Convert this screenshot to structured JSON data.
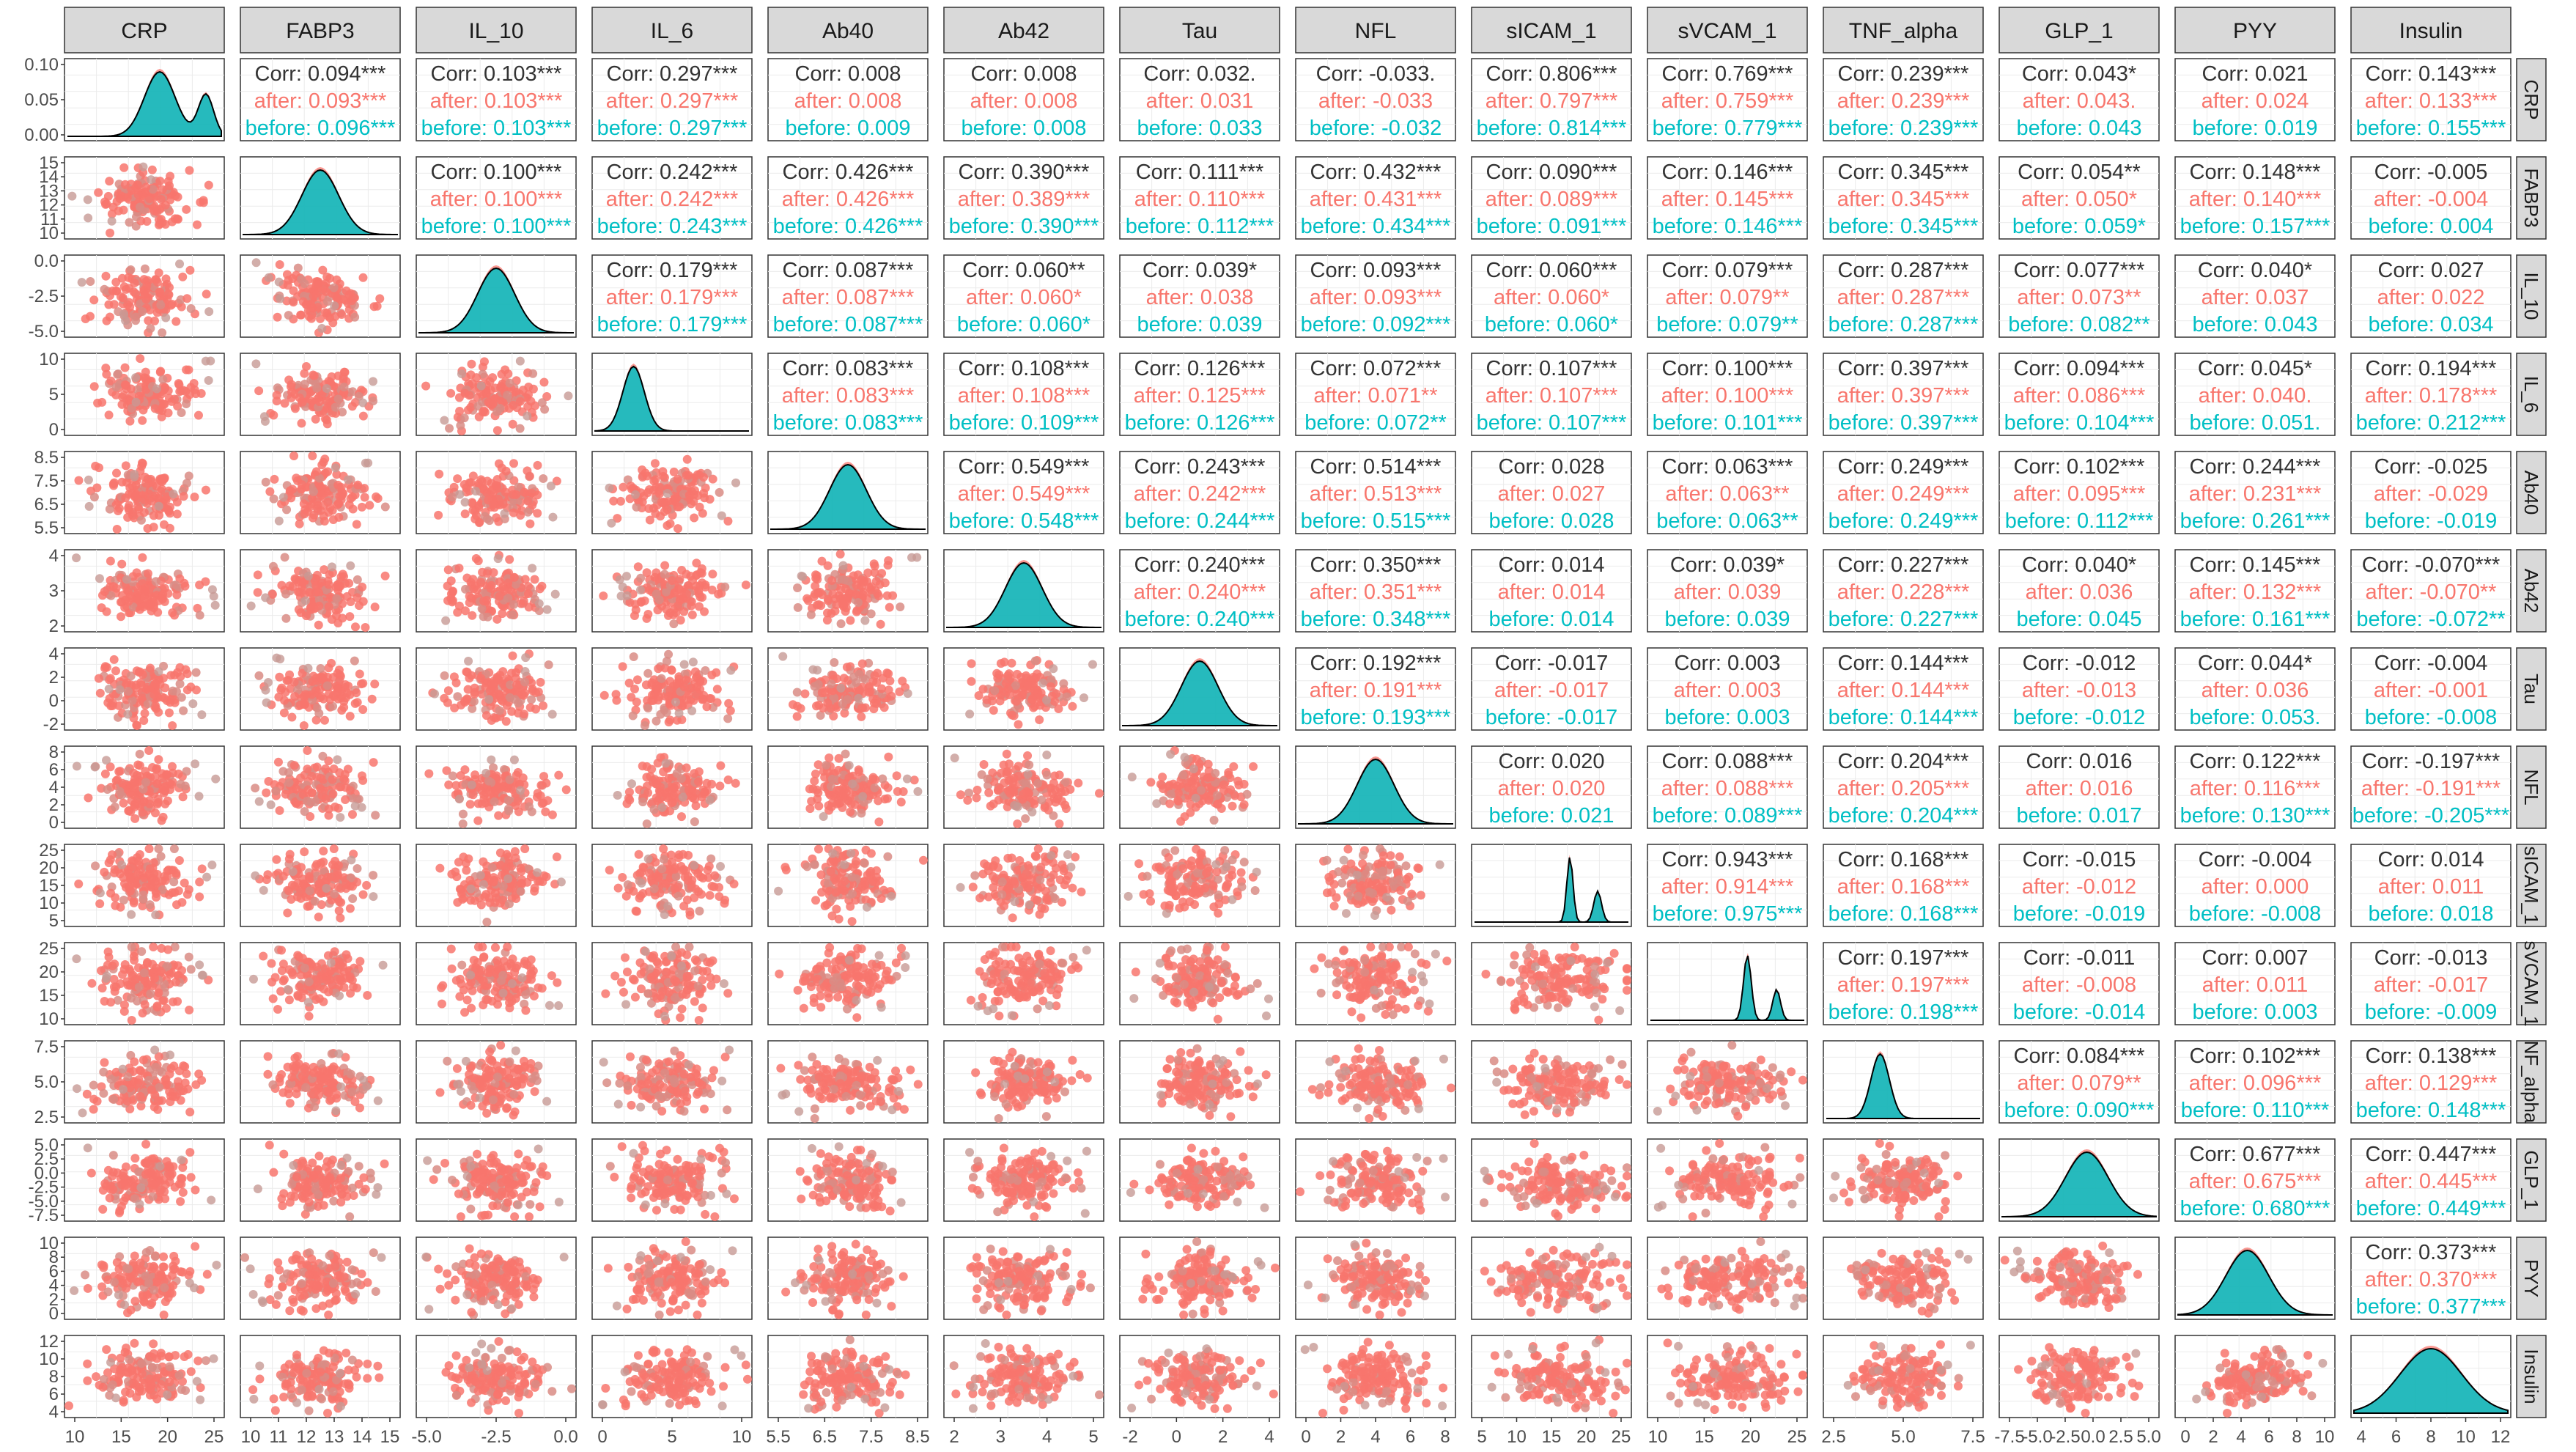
{
  "chart_data": {
    "type": "scatter-matrix",
    "title": "",
    "variables": [
      "CRP",
      "FABP3",
      "IL_10",
      "IL_6",
      "Ab40",
      "Ab42",
      "Tau",
      "NFL",
      "sICAM_1",
      "sVCAM_1",
      "TNF_alpha",
      "GLP_1",
      "PYY",
      "Insulin"
    ],
    "row_labels_shown": [
      "CRP",
      "FABP3",
      "IL_10",
      "IL_6",
      "Ab40",
      "Ab42",
      "Tau",
      "NFL",
      "sICAM_1",
      "sVCAM_1",
      "NF_alpha",
      "GLP_1",
      "PYY",
      "Insulin"
    ],
    "groups": [
      {
        "name": "Corr",
        "color": "#333333"
      },
      {
        "name": "after",
        "color": "#F8766D"
      },
      {
        "name": "before",
        "color": "#00BFC4"
      }
    ],
    "x_ticks": [
      [
        "10",
        "15",
        "20",
        "25"
      ],
      [
        "10",
        "11",
        "12",
        "13",
        "14",
        "15"
      ],
      [
        "-5.0",
        "-2.5",
        "0.0"
      ],
      [
        "0",
        "5",
        "10"
      ],
      [
        "5.5",
        "6.5",
        "7.5",
        "8.5"
      ],
      [
        "2",
        "3",
        "4",
        "5"
      ],
      [
        "-2",
        "0",
        "2",
        "4"
      ],
      [
        "0",
        "2",
        "4",
        "6",
        "8"
      ],
      [
        "5",
        "10",
        "15",
        "20",
        "25"
      ],
      [
        "10",
        "15",
        "20",
        "25"
      ],
      [
        "2.5",
        "5.0",
        "7.5"
      ],
      [
        "-7.5",
        "-5.0",
        "-2.5",
        "0.0",
        "2.5",
        "5.0"
      ],
      [
        "0",
        "2",
        "4",
        "6",
        "8",
        "10"
      ],
      [
        "4",
        "6",
        "8",
        "10",
        "12"
      ]
    ],
    "y_ticks": [
      [
        "0.10",
        "0.05",
        "0.00"
      ],
      [
        "15",
        "14",
        "13",
        "12",
        "11",
        "10"
      ],
      [
        "0.0",
        "-2.5",
        "-5.0"
      ],
      [
        "10",
        "5",
        "0"
      ],
      [
        "8.5",
        "7.5",
        "6.5",
        "5.5"
      ],
      [
        "4",
        "3",
        "2"
      ],
      [
        "4",
        "2",
        "0",
        "-2"
      ],
      [
        "8",
        "6",
        "4",
        "2",
        "0"
      ],
      [
        "25",
        "20",
        "15",
        "10",
        "5"
      ],
      [
        "25",
        "20",
        "15",
        "10"
      ],
      [
        "7.5",
        "5.0",
        "2.5"
      ],
      [
        "5.0",
        "2.5",
        "0.0",
        "-2.5",
        "-5.0",
        "-7.5"
      ],
      [
        "10",
        "8",
        "6",
        "4",
        "2",
        "0"
      ],
      [
        "12",
        "10",
        "8",
        "6",
        "4"
      ]
    ],
    "correlations": [
      {
        "i": 0,
        "j": 1,
        "corr": "Corr: 0.094***",
        "after": "after: 0.093***",
        "before": "before: 0.096***"
      },
      {
        "i": 0,
        "j": 2,
        "corr": "Corr: 0.103***",
        "after": "after: 0.103***",
        "before": "before: 0.103***"
      },
      {
        "i": 0,
        "j": 3,
        "corr": "Corr: 0.297***",
        "after": "after: 0.297***",
        "before": "before: 0.297***"
      },
      {
        "i": 0,
        "j": 4,
        "corr": "Corr: 0.008",
        "after": "after: 0.008",
        "before": "before: 0.009"
      },
      {
        "i": 0,
        "j": 5,
        "corr": "Corr: 0.008",
        "after": "after: 0.008",
        "before": "before: 0.008"
      },
      {
        "i": 0,
        "j": 6,
        "corr": "Corr: 0.032.",
        "after": "after: 0.031",
        "before": "before: 0.033"
      },
      {
        "i": 0,
        "j": 7,
        "corr": "Corr: -0.033.",
        "after": "after: -0.033",
        "before": "before: -0.032"
      },
      {
        "i": 0,
        "j": 8,
        "corr": "Corr: 0.806***",
        "after": "after: 0.797***",
        "before": "before: 0.814***"
      },
      {
        "i": 0,
        "j": 9,
        "corr": "Corr: 0.769***",
        "after": "after: 0.759***",
        "before": "before: 0.779***"
      },
      {
        "i": 0,
        "j": 10,
        "corr": "Corr: 0.239***",
        "after": "after: 0.239***",
        "before": "before: 0.239***"
      },
      {
        "i": 0,
        "j": 11,
        "corr": "Corr: 0.043*",
        "after": "after: 0.043.",
        "before": "before: 0.043"
      },
      {
        "i": 0,
        "j": 12,
        "corr": "Corr: 0.021",
        "after": "after: 0.024",
        "before": "before: 0.019"
      },
      {
        "i": 0,
        "j": 13,
        "corr": "Corr: 0.143***",
        "after": "after: 0.133***",
        "before": "before: 0.155***"
      },
      {
        "i": 1,
        "j": 2,
        "corr": "Corr: 0.100***",
        "after": "after: 0.100***",
        "before": "before: 0.100***"
      },
      {
        "i": 1,
        "j": 3,
        "corr": "Corr: 0.242***",
        "after": "after: 0.242***",
        "before": "before: 0.243***"
      },
      {
        "i": 1,
        "j": 4,
        "corr": "Corr: 0.426***",
        "after": "after: 0.426***",
        "before": "before: 0.426***"
      },
      {
        "i": 1,
        "j": 5,
        "corr": "Corr: 0.390***",
        "after": "after: 0.389***",
        "before": "before: 0.390***"
      },
      {
        "i": 1,
        "j": 6,
        "corr": "Corr: 0.111***",
        "after": "after: 0.110***",
        "before": "before: 0.112***"
      },
      {
        "i": 1,
        "j": 7,
        "corr": "Corr: 0.432***",
        "after": "after: 0.431***",
        "before": "before: 0.434***"
      },
      {
        "i": 1,
        "j": 8,
        "corr": "Corr: 0.090***",
        "after": "after: 0.089***",
        "before": "before: 0.091***"
      },
      {
        "i": 1,
        "j": 9,
        "corr": "Corr: 0.146***",
        "after": "after: 0.145***",
        "before": "before: 0.146***"
      },
      {
        "i": 1,
        "j": 10,
        "corr": "Corr: 0.345***",
        "after": "after: 0.345***",
        "before": "before: 0.345***"
      },
      {
        "i": 1,
        "j": 11,
        "corr": "Corr: 0.054**",
        "after": "after: 0.050*",
        "before": "before: 0.059*"
      },
      {
        "i": 1,
        "j": 12,
        "corr": "Corr: 0.148***",
        "after": "after: 0.140***",
        "before": "before: 0.157***"
      },
      {
        "i": 1,
        "j": 13,
        "corr": "Corr: -0.005",
        "after": "after: -0.004",
        "before": "before: 0.004"
      },
      {
        "i": 2,
        "j": 3,
        "corr": "Corr: 0.179***",
        "after": "after: 0.179***",
        "before": "before: 0.179***"
      },
      {
        "i": 2,
        "j": 4,
        "corr": "Corr: 0.087***",
        "after": "after: 0.087***",
        "before": "before: 0.087***"
      },
      {
        "i": 2,
        "j": 5,
        "corr": "Corr: 0.060**",
        "after": "after: 0.060*",
        "before": "before: 0.060*"
      },
      {
        "i": 2,
        "j": 6,
        "corr": "Corr: 0.039*",
        "after": "after: 0.038",
        "before": "before: 0.039"
      },
      {
        "i": 2,
        "j": 7,
        "corr": "Corr: 0.093***",
        "after": "after: 0.093***",
        "before": "before: 0.092***"
      },
      {
        "i": 2,
        "j": 8,
        "corr": "Corr: 0.060***",
        "after": "after: 0.060*",
        "before": "before: 0.060*"
      },
      {
        "i": 2,
        "j": 9,
        "corr": "Corr: 0.079***",
        "after": "after: 0.079**",
        "before": "before: 0.079**"
      },
      {
        "i": 2,
        "j": 10,
        "corr": "Corr: 0.287***",
        "after": "after: 0.287***",
        "before": "before: 0.287***"
      },
      {
        "i": 2,
        "j": 11,
        "corr": "Corr: 0.077***",
        "after": "after: 0.073**",
        "before": "before: 0.082**"
      },
      {
        "i": 2,
        "j": 12,
        "corr": "Corr: 0.040*",
        "after": "after: 0.037",
        "before": "before: 0.043"
      },
      {
        "i": 2,
        "j": 13,
        "corr": "Corr: 0.027",
        "after": "after: 0.022",
        "before": "before: 0.034"
      },
      {
        "i": 3,
        "j": 4,
        "corr": "Corr: 0.083***",
        "after": "after: 0.083***",
        "before": "before: 0.083***"
      },
      {
        "i": 3,
        "j": 5,
        "corr": "Corr: 0.108***",
        "after": "after: 0.108***",
        "before": "before: 0.109***"
      },
      {
        "i": 3,
        "j": 6,
        "corr": "Corr: 0.126***",
        "after": "after: 0.125***",
        "before": "before: 0.126***"
      },
      {
        "i": 3,
        "j": 7,
        "corr": "Corr: 0.072***",
        "after": "after: 0.071**",
        "before": "before: 0.072**"
      },
      {
        "i": 3,
        "j": 8,
        "corr": "Corr: 0.107***",
        "after": "after: 0.107***",
        "before": "before: 0.107***"
      },
      {
        "i": 3,
        "j": 9,
        "corr": "Corr: 0.100***",
        "after": "after: 0.100***",
        "before": "before: 0.101***"
      },
      {
        "i": 3,
        "j": 10,
        "corr": "Corr: 0.397***",
        "after": "after: 0.397***",
        "before": "before: 0.397***"
      },
      {
        "i": 3,
        "j": 11,
        "corr": "Corr: 0.094***",
        "after": "after: 0.086***",
        "before": "before: 0.104***"
      },
      {
        "i": 3,
        "j": 12,
        "corr": "Corr: 0.045*",
        "after": "after: 0.040.",
        "before": "before: 0.051."
      },
      {
        "i": 3,
        "j": 13,
        "corr": "Corr: 0.194***",
        "after": "after: 0.178***",
        "before": "before: 0.212***"
      },
      {
        "i": 4,
        "j": 5,
        "corr": "Corr: 0.549***",
        "after": "after: 0.549***",
        "before": "before: 0.548***"
      },
      {
        "i": 4,
        "j": 6,
        "corr": "Corr: 0.243***",
        "after": "after: 0.242***",
        "before": "before: 0.244***"
      },
      {
        "i": 4,
        "j": 7,
        "corr": "Corr: 0.514***",
        "after": "after: 0.513***",
        "before": "before: 0.515***"
      },
      {
        "i": 4,
        "j": 8,
        "corr": "Corr: 0.028",
        "after": "after: 0.027",
        "before": "before: 0.028"
      },
      {
        "i": 4,
        "j": 9,
        "corr": "Corr: 0.063***",
        "after": "after: 0.063**",
        "before": "before: 0.063**"
      },
      {
        "i": 4,
        "j": 10,
        "corr": "Corr: 0.249***",
        "after": "after: 0.249***",
        "before": "before: 0.249***"
      },
      {
        "i": 4,
        "j": 11,
        "corr": "Corr: 0.102***",
        "after": "after: 0.095***",
        "before": "before: 0.112***"
      },
      {
        "i": 4,
        "j": 12,
        "corr": "Corr: 0.244***",
        "after": "after: 0.231***",
        "before": "before: 0.261***"
      },
      {
        "i": 4,
        "j": 13,
        "corr": "Corr: -0.025",
        "after": "after: -0.029",
        "before": "before: -0.019"
      },
      {
        "i": 5,
        "j": 6,
        "corr": "Corr: 0.240***",
        "after": "after: 0.240***",
        "before": "before: 0.240***"
      },
      {
        "i": 5,
        "j": 7,
        "corr": "Corr: 0.350***",
        "after": "after: 0.351***",
        "before": "before: 0.348***"
      },
      {
        "i": 5,
        "j": 8,
        "corr": "Corr: 0.014",
        "after": "after: 0.014",
        "before": "before: 0.014"
      },
      {
        "i": 5,
        "j": 9,
        "corr": "Corr: 0.039*",
        "after": "after: 0.039",
        "before": "before: 0.039"
      },
      {
        "i": 5,
        "j": 10,
        "corr": "Corr: 0.227***",
        "after": "after: 0.228***",
        "before": "before: 0.227***"
      },
      {
        "i": 5,
        "j": 11,
        "corr": "Corr: 0.040*",
        "after": "after: 0.036",
        "before": "before: 0.045"
      },
      {
        "i": 5,
        "j": 12,
        "corr": "Corr: 0.145***",
        "after": "after: 0.132***",
        "before": "before: 0.161***"
      },
      {
        "i": 5,
        "j": 13,
        "corr": "Corr: -0.070***",
        "after": "after: -0.070**",
        "before": "before: -0.072**"
      },
      {
        "i": 6,
        "j": 7,
        "corr": "Corr: 0.192***",
        "after": "after: 0.191***",
        "before": "before: 0.193***"
      },
      {
        "i": 6,
        "j": 8,
        "corr": "Corr: -0.017",
        "after": "after: -0.017",
        "before": "before: -0.017"
      },
      {
        "i": 6,
        "j": 9,
        "corr": "Corr: 0.003",
        "after": "after: 0.003",
        "before": "before: 0.003"
      },
      {
        "i": 6,
        "j": 10,
        "corr": "Corr: 0.144***",
        "after": "after: 0.144***",
        "before": "before: 0.144***"
      },
      {
        "i": 6,
        "j": 11,
        "corr": "Corr: -0.012",
        "after": "after: -0.013",
        "before": "before: -0.012"
      },
      {
        "i": 6,
        "j": 12,
        "corr": "Corr: 0.044*",
        "after": "after: 0.036",
        "before": "before: 0.053."
      },
      {
        "i": 6,
        "j": 13,
        "corr": "Corr: -0.004",
        "after": "after: -0.001",
        "before": "before: -0.008"
      },
      {
        "i": 7,
        "j": 8,
        "corr": "Corr: 0.020",
        "after": "after: 0.020",
        "before": "before: 0.021"
      },
      {
        "i": 7,
        "j": 9,
        "corr": "Corr: 0.088***",
        "after": "after: 0.088***",
        "before": "before: 0.089***"
      },
      {
        "i": 7,
        "j": 10,
        "corr": "Corr: 0.204***",
        "after": "after: 0.205***",
        "before": "before: 0.204***"
      },
      {
        "i": 7,
        "j": 11,
        "corr": "Corr: 0.016",
        "after": "after: 0.016",
        "before": "before: 0.017"
      },
      {
        "i": 7,
        "j": 12,
        "corr": "Corr: 0.122***",
        "after": "after: 0.116***",
        "before": "before: 0.130***"
      },
      {
        "i": 7,
        "j": 13,
        "corr": "Corr: -0.197***",
        "after": "after: -0.191***",
        "before": "before: -0.205***"
      },
      {
        "i": 8,
        "j": 9,
        "corr": "Corr: 0.943***",
        "after": "after: 0.914***",
        "before": "before: 0.975***"
      },
      {
        "i": 8,
        "j": 10,
        "corr": "Corr: 0.168***",
        "after": "after: 0.168***",
        "before": "before: 0.168***"
      },
      {
        "i": 8,
        "j": 11,
        "corr": "Corr: -0.015",
        "after": "after: -0.012",
        "before": "before: -0.019"
      },
      {
        "i": 8,
        "j": 12,
        "corr": "Corr: -0.004",
        "after": "after: 0.000",
        "before": "before: -0.008"
      },
      {
        "i": 8,
        "j": 13,
        "corr": "Corr: 0.014",
        "after": "after: 0.011",
        "before": "before: 0.018"
      },
      {
        "i": 9,
        "j": 10,
        "corr": "Corr: 0.197***",
        "after": "after: 0.197***",
        "before": "before: 0.198***"
      },
      {
        "i": 9,
        "j": 11,
        "corr": "Corr: -0.011",
        "after": "after: -0.008",
        "before": "before: -0.014"
      },
      {
        "i": 9,
        "j": 12,
        "corr": "Corr: 0.007",
        "after": "after: 0.011",
        "before": "before: 0.003"
      },
      {
        "i": 9,
        "j": 13,
        "corr": "Corr: -0.013",
        "after": "after: -0.017",
        "before": "before: -0.009"
      },
      {
        "i": 10,
        "j": 11,
        "corr": "Corr: 0.084***",
        "after": "after: 0.079**",
        "before": "before: 0.090***"
      },
      {
        "i": 10,
        "j": 12,
        "corr": "Corr: 0.102***",
        "after": "after: 0.096***",
        "before": "before: 0.110***"
      },
      {
        "i": 10,
        "j": 13,
        "corr": "Corr: 0.138***",
        "after": "after: 0.129***",
        "before": "before: 0.148***"
      },
      {
        "i": 11,
        "j": 12,
        "corr": "Corr: 0.677***",
        "after": "after: 0.675***",
        "before": "before: 0.680***"
      },
      {
        "i": 11,
        "j": 13,
        "corr": "Corr: 0.447***",
        "after": "after: 0.445***",
        "before": "before: 0.449***"
      },
      {
        "i": 12,
        "j": 13,
        "corr": "Corr: 0.373***",
        "after": "after: 0.370***",
        "before": "before: 0.377***"
      }
    ]
  },
  "colors": {
    "after": "#F8766D",
    "before": "#00BFC4",
    "corr": "#333333",
    "strip_bg": "#D9D9D9",
    "panel_border": "#333333",
    "grid": "#EBEBEB"
  }
}
